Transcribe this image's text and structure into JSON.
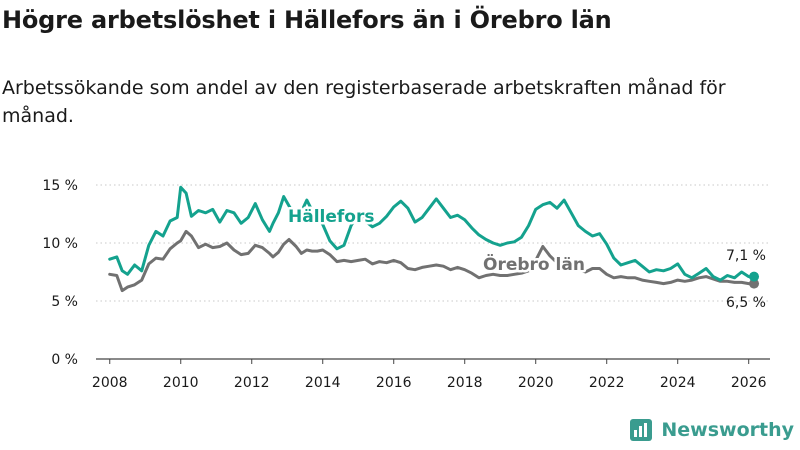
{
  "title": "Högre arbetslöshet i Hällefors än i Örebro län",
  "subtitle": "Arbetssökande som andel av den registerbaserade arbetskraften månad för månad.",
  "brand": "Newsworthy",
  "colors": {
    "hallefors": "#14a28e",
    "orebro": "#717171",
    "grid": "#c8c8c8",
    "text": "#1a1a1a",
    "brand": "#3a9c8f"
  },
  "chart_data": {
    "type": "line",
    "ylim": [
      0,
      15
    ],
    "yticks": [
      0,
      5,
      10,
      15
    ],
    "ytick_labels": [
      "0 %",
      "5 %",
      "10 %",
      "15 %"
    ],
    "xlim": [
      2007.5,
      2026.6
    ],
    "xticks": [
      2008,
      2010,
      2012,
      2014,
      2016,
      2018,
      2020,
      2022,
      2024,
      2026
    ],
    "xtick_labels": [
      "2008",
      "2010",
      "2012",
      "2014",
      "2016",
      "2018",
      "2020",
      "2022",
      "2024",
      "2026"
    ],
    "series": [
      {
        "name": "Hällefors",
        "label": "Hällefors",
        "end_label": "7,1 %",
        "color": "#14a28e",
        "x": [
          2008.0,
          2008.2,
          2008.35,
          2008.5,
          2008.7,
          2008.9,
          2009.1,
          2009.3,
          2009.5,
          2009.7,
          2009.9,
          2010.0,
          2010.15,
          2010.3,
          2010.5,
          2010.7,
          2010.9,
          2011.1,
          2011.3,
          2011.5,
          2011.7,
          2011.9,
          2012.1,
          2012.3,
          2012.5,
          2012.6,
          2012.75,
          2012.9,
          2013.05,
          2013.25,
          2013.4,
          2013.55,
          2013.7,
          2013.85,
          2014.0,
          2014.2,
          2014.4,
          2014.6,
          2014.8,
          2015.0,
          2015.2,
          2015.4,
          2015.6,
          2015.8,
          2016.0,
          2016.2,
          2016.4,
          2016.6,
          2016.8,
          2017.0,
          2017.2,
          2017.4,
          2017.6,
          2017.8,
          2018.0,
          2018.2,
          2018.4,
          2018.6,
          2018.8,
          2019.0,
          2019.2,
          2019.4,
          2019.6,
          2019.8,
          2020.0,
          2020.2,
          2020.4,
          2020.6,
          2020.8,
          2021.0,
          2021.2,
          2021.4,
          2021.6,
          2021.8,
          2022.0,
          2022.2,
          2022.4,
          2022.6,
          2022.8,
          2023.0,
          2023.2,
          2023.4,
          2023.6,
          2023.8,
          2024.0,
          2024.2,
          2024.4,
          2024.6,
          2024.8,
          2025.0,
          2025.2,
          2025.4,
          2025.6,
          2025.8,
          2026.0,
          2026.15
        ],
        "values": [
          8.6,
          8.8,
          7.6,
          7.3,
          8.1,
          7.6,
          9.8,
          11.0,
          10.6,
          11.9,
          12.2,
          14.8,
          14.3,
          12.3,
          12.8,
          12.6,
          12.9,
          11.8,
          12.8,
          12.6,
          11.7,
          12.2,
          13.4,
          12.0,
          11.0,
          11.7,
          12.6,
          14.0,
          13.2,
          12.2,
          12.7,
          13.7,
          12.8,
          12.2,
          11.6,
          10.2,
          9.5,
          9.8,
          11.5,
          12.5,
          11.9,
          11.4,
          11.7,
          12.3,
          13.1,
          13.6,
          13.0,
          11.8,
          12.2,
          13.0,
          13.8,
          13.0,
          12.2,
          12.4,
          12.0,
          11.3,
          10.7,
          10.3,
          10.0,
          9.8,
          10.0,
          10.1,
          10.5,
          11.5,
          12.9,
          13.3,
          13.5,
          13.0,
          13.7,
          12.6,
          11.5,
          11.0,
          10.6,
          10.8,
          9.9,
          8.7,
          8.1,
          8.3,
          8.5,
          8.0,
          7.5,
          7.7,
          7.6,
          7.8,
          8.2,
          7.3,
          7.0,
          7.4,
          7.8,
          7.1,
          6.8,
          7.2,
          7.0,
          7.5,
          7.1,
          7.1
        ]
      },
      {
        "name": "Örebro län",
        "label": "Örebro län",
        "end_label": "6,5 %",
        "color": "#717171",
        "x": [
          2008.0,
          2008.2,
          2008.35,
          2008.5,
          2008.7,
          2008.9,
          2009.1,
          2009.3,
          2009.5,
          2009.7,
          2009.9,
          2010.0,
          2010.15,
          2010.3,
          2010.5,
          2010.7,
          2010.9,
          2011.1,
          2011.3,
          2011.5,
          2011.7,
          2011.9,
          2012.1,
          2012.3,
          2012.5,
          2012.6,
          2012.75,
          2012.9,
          2013.05,
          2013.25,
          2013.4,
          2013.55,
          2013.7,
          2013.85,
          2014.0,
          2014.2,
          2014.4,
          2014.6,
          2014.8,
          2015.0,
          2015.2,
          2015.4,
          2015.6,
          2015.8,
          2016.0,
          2016.2,
          2016.4,
          2016.6,
          2016.8,
          2017.0,
          2017.2,
          2017.4,
          2017.6,
          2017.8,
          2018.0,
          2018.2,
          2018.4,
          2018.6,
          2018.8,
          2019.0,
          2019.2,
          2019.4,
          2019.6,
          2019.8,
          2020.0,
          2020.2,
          2020.4,
          2020.6,
          2020.8,
          2021.0,
          2021.2,
          2021.4,
          2021.6,
          2021.8,
          2022.0,
          2022.2,
          2022.4,
          2022.6,
          2022.8,
          2023.0,
          2023.2,
          2023.4,
          2023.6,
          2023.8,
          2024.0,
          2024.2,
          2024.4,
          2024.6,
          2024.8,
          2025.0,
          2025.2,
          2025.4,
          2025.6,
          2025.8,
          2026.0,
          2026.15
        ],
        "values": [
          7.3,
          7.2,
          5.9,
          6.2,
          6.4,
          6.8,
          8.2,
          8.7,
          8.6,
          9.5,
          10.0,
          10.2,
          11.0,
          10.6,
          9.6,
          9.9,
          9.6,
          9.7,
          10.0,
          9.4,
          9.0,
          9.1,
          9.8,
          9.6,
          9.1,
          8.8,
          9.2,
          9.9,
          10.3,
          9.7,
          9.1,
          9.4,
          9.3,
          9.3,
          9.4,
          9.0,
          8.4,
          8.5,
          8.4,
          8.5,
          8.6,
          8.2,
          8.4,
          8.3,
          8.5,
          8.3,
          7.8,
          7.7,
          7.9,
          8.0,
          8.1,
          8.0,
          7.7,
          7.9,
          7.7,
          7.4,
          7.0,
          7.2,
          7.3,
          7.2,
          7.2,
          7.3,
          7.4,
          7.6,
          8.5,
          9.7,
          8.9,
          8.3,
          7.9,
          7.8,
          7.7,
          7.5,
          7.8,
          7.8,
          7.3,
          7.0,
          7.1,
          7.0,
          7.0,
          6.8,
          6.7,
          6.6,
          6.5,
          6.6,
          6.8,
          6.7,
          6.8,
          7.0,
          7.1,
          6.9,
          6.7,
          6.7,
          6.6,
          6.6,
          6.5,
          6.5
        ]
      }
    ]
  }
}
